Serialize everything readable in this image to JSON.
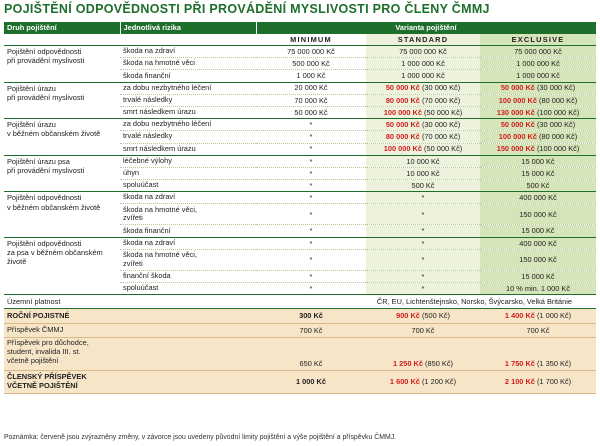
{
  "title": "POJIŠTĚNÍ ODPOVĚDNOSTI PŘI PROVÁDĚNÍ MYSLIVOSTI PRO ČLENY ČMMJ",
  "colors": {
    "accent": "#1e6e2c",
    "red": "#d21e1e",
    "summary_bg": "#f7e5c8",
    "standard_bg": "#ecf2dc",
    "exclusive_bg": "#d6e4ba"
  },
  "header": {
    "col_type": "Druh pojištění",
    "col_risk": "Jednotlivá rizika",
    "col_variant": "Varianta pojištění",
    "variants": [
      "MINIMUM",
      "STANDARD",
      "EXCLUSIVE"
    ]
  },
  "rows": [
    {
      "cat": "Pojištění odpovědnosti\npři provádění myslivosti",
      "risk": "škoda na zdraví",
      "min": "75 000 000 Kč",
      "std_b": "",
      "std_n": "75 000 000 Kč",
      "exc_b": "",
      "exc_n": "75 000 000 Kč"
    },
    {
      "risk": "škoda na hmotné věci",
      "min": "500 000 Kč",
      "std_b": "",
      "std_n": "1 000 000 Kč",
      "exc_b": "",
      "exc_n": "1 000 000 Kč"
    },
    {
      "risk": "škoda finanční",
      "min": "1 000 Kč",
      "std_b": "",
      "std_n": "1 000 000 Kč",
      "exc_b": "",
      "exc_n": "1 000 000 Kč"
    },
    {
      "cat": "Pojištění úrazu\npři provádění myslivosti",
      "risk": "za dobu nezbytného léčení",
      "min": "20 000 Kč",
      "std_b": "50 000 Kč",
      "std_n": " (30 000 Kč)",
      "exc_b": "50 000 Kč",
      "exc_n": " (30 000 Kč)"
    },
    {
      "risk": "trvalé následky",
      "min": "70 000 Kč",
      "std_b": "80 000 Kč",
      "std_n": " (70 000 Kč)",
      "exc_b": "100 000 Kč",
      "exc_n": " (80 000 Kč)"
    },
    {
      "risk": "smrt následkem úrazu",
      "min": "50 000 Kč",
      "std_b": "100 000 Kč",
      "std_n": " (50 000 Kč)",
      "exc_b": "130 000 Kč",
      "exc_n": " (100 000 Kč)"
    },
    {
      "cat": "Pojištění úrazu\nv běžném občanském životě",
      "risk": "za dobu nezbytného léčení",
      "min": "*",
      "std_b": "50 000 Kč",
      "std_n": " (30 000 Kč)",
      "exc_b": "50 000 Kč",
      "exc_n": " (30 000 Kč)"
    },
    {
      "risk": "trvalé následky",
      "min": "*",
      "std_b": "80 000 Kč",
      "std_n": " (70 000 Kč)",
      "exc_b": "100 000 Kč",
      "exc_n": " (80 000 Kč)"
    },
    {
      "risk": "smrt následkem úrazu",
      "min": "*",
      "std_b": "100 000 Kč",
      "std_n": " (50 000 Kč)",
      "exc_b": "150 000 Kč",
      "exc_n": " (100 000 Kč)"
    },
    {
      "cat": "Pojištění úrazu psa\npři provádění myslivosti",
      "risk": "léčebné výlohy",
      "min": "*",
      "std_b": "",
      "std_n": "10 000 Kč",
      "exc_b": "",
      "exc_n": "15 000 Kč"
    },
    {
      "risk": "úhyn",
      "min": "*",
      "std_b": "",
      "std_n": "10 000 Kč",
      "exc_b": "",
      "exc_n": "15 000 Kč"
    },
    {
      "risk": "spoluúčast",
      "min": "*",
      "std_b": "",
      "std_n": "500 Kč",
      "exc_b": "",
      "exc_n": "500 Kč"
    },
    {
      "cat": "Pojištění odpovědnosti\nv běžném občanském životě",
      "risk": "škoda na zdraví",
      "min": "*",
      "std_b": "",
      "std_n": "*",
      "exc_b": "",
      "exc_n": "400 000 Kč"
    },
    {
      "risk": "škoda na hmotné věci,\nzvířeti",
      "min": "*",
      "std_b": "",
      "std_n": "*",
      "exc_b": "",
      "exc_n": "150 000 Kč"
    },
    {
      "risk": "škoda finanční",
      "min": "*",
      "std_b": "",
      "std_n": "*",
      "exc_b": "",
      "exc_n": "15 000 Kč"
    },
    {
      "cat": "Pojištění odpovědnosti\nza psa v běžném občanském\nživotě",
      "risk": "škoda na zdraví",
      "min": "*",
      "std_b": "",
      "std_n": "*",
      "exc_b": "",
      "exc_n": "400 000 Kč"
    },
    {
      "risk": "škoda na hmotné věci,\nzvířeti",
      "min": "*",
      "std_b": "",
      "std_n": "*",
      "exc_b": "",
      "exc_n": "150 000 Kč"
    },
    {
      "risk": "finanční škoda",
      "min": "*",
      "std_b": "",
      "std_n": "*",
      "exc_b": "",
      "exc_n": "15 000 Kč"
    },
    {
      "risk": "spoluúčast",
      "min": "*",
      "std_b": "",
      "std_n": "*",
      "exc_b": "",
      "exc_n": "10 % min. 1 000 Kč"
    }
  ],
  "territory": {
    "label": "Územní platnost",
    "value": "ČR, EU, Lichtenštejnsko, Norsko, Švýcarsko, Velká Británie"
  },
  "summary": [
    {
      "label": "ROČNÍ POJISTNÉ",
      "bold": true,
      "min": "300 Kč",
      "std_b": "900 Kč",
      "std_n": " (500 Kč)",
      "exc_b": "1 400 Kč",
      "exc_n": " (1 000 Kč)"
    },
    {
      "label": "Příspěvek ČMMJ",
      "bold": false,
      "min": "700 Kč",
      "std_b": "",
      "std_n": "700 Kč",
      "exc_b": "",
      "exc_n": "700 Kč"
    },
    {
      "label": "Příspěvek pro důchodce,\nstudent, invalida III. st.\nvčetně pojištění",
      "bold": false,
      "min": "650 Kč",
      "std_b": "1 250 Kč",
      "std_n": " (850 Kč)",
      "exc_b": "1 750 Kč",
      "exc_n": " (1 350 Kč)"
    },
    {
      "label": "ČLENSKÝ PŘÍSPĚVEK\nVČETNĚ POJIŠTĚNÍ",
      "bold": true,
      "min": "1 000 Kč",
      "std_b": "1 600 Kč",
      "std_n": " (1 200 Kč)",
      "exc_b": "2 100 Kč",
      "exc_n": " (1 700 Kč)"
    }
  ],
  "note": "Poznámka: červeně jsou zvýrazněny změny, v závorce jsou uvedeny původní limity pojištění a výše pojištění a příspěvku ČMMJ."
}
